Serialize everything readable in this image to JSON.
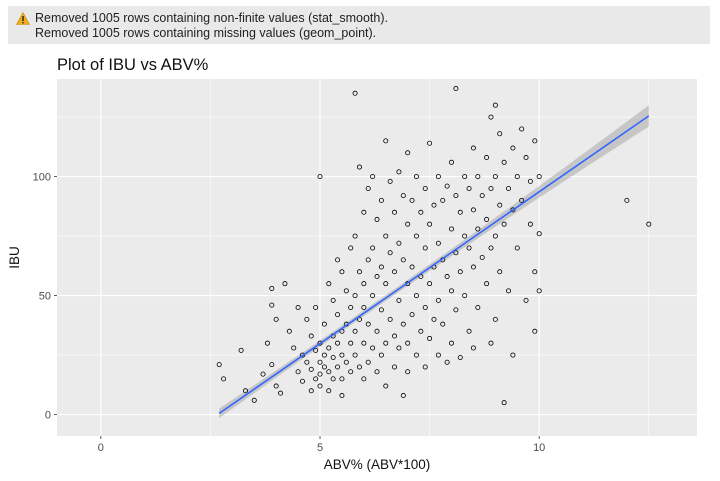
{
  "warnings": {
    "icon": "warning-triangle-icon",
    "icon_color": "#f0ad1c",
    "lines": [
      "Removed 1005 rows containing non-finite values (stat_smooth).",
      "Removed 1005 rows containing missing values (geom_point)."
    ]
  },
  "chart_data": {
    "type": "scatter",
    "title": "Plot of IBU vs ABV%",
    "xlabel": "ABV% (ABV*100)",
    "ylabel": "IBU",
    "xlim": [
      -1.0,
      13.6
    ],
    "ylim": [
      -9,
      141
    ],
    "x_ticks": [
      0,
      5,
      10
    ],
    "y_ticks": [
      0,
      50,
      100
    ],
    "x_tick_labels": [
      "0",
      "5",
      "10"
    ],
    "y_tick_labels": [
      "0",
      "50",
      "100"
    ],
    "grid": true,
    "panel_background": "#ebebeb",
    "grid_color": "#ffffff",
    "point_color": "#000000",
    "smooth": {
      "method": "linear",
      "color": "#3366ff",
      "ribbon_color": "#999999",
      "x": [
        2.7,
        12.5
      ],
      "y": [
        0.5,
        125.5
      ],
      "se_at_ends": 4.5,
      "se_at_center": 1.2,
      "x_center": 6.0
    },
    "points": [
      [
        2.7,
        21
      ],
      [
        2.8,
        15
      ],
      [
        3.2,
        27
      ],
      [
        3.3,
        10
      ],
      [
        3.5,
        6
      ],
      [
        3.9,
        53
      ],
      [
        3.9,
        46
      ],
      [
        4.2,
        55
      ],
      [
        4.0,
        40
      ],
      [
        3.8,
        30
      ],
      [
        3.9,
        21
      ],
      [
        3.7,
        17
      ],
      [
        4.0,
        12
      ],
      [
        4.1,
        9
      ],
      [
        4.3,
        35
      ],
      [
        4.4,
        28
      ],
      [
        4.5,
        45
      ],
      [
        4.5,
        18
      ],
      [
        4.6,
        25
      ],
      [
        4.6,
        14
      ],
      [
        4.7,
        40
      ],
      [
        4.7,
        22
      ],
      [
        4.8,
        33
      ],
      [
        4.8,
        19
      ],
      [
        4.8,
        10
      ],
      [
        4.9,
        27
      ],
      [
        4.9,
        15
      ],
      [
        4.9,
        45
      ],
      [
        5.0,
        100
      ],
      [
        5.0,
        30
      ],
      [
        5.0,
        22
      ],
      [
        5.0,
        17
      ],
      [
        5.0,
        12
      ],
      [
        5.1,
        38
      ],
      [
        5.1,
        25
      ],
      [
        5.1,
        20
      ],
      [
        5.2,
        55
      ],
      [
        5.2,
        28
      ],
      [
        5.2,
        18
      ],
      [
        5.2,
        10
      ],
      [
        5.3,
        48
      ],
      [
        5.3,
        33
      ],
      [
        5.3,
        24
      ],
      [
        5.3,
        15
      ],
      [
        5.4,
        65
      ],
      [
        5.4,
        42
      ],
      [
        5.4,
        30
      ],
      [
        5.4,
        20
      ],
      [
        5.5,
        60
      ],
      [
        5.5,
        35
      ],
      [
        5.5,
        25
      ],
      [
        5.5,
        15
      ],
      [
        5.5,
        8
      ],
      [
        5.6,
        52
      ],
      [
        5.6,
        38
      ],
      [
        5.6,
        22
      ],
      [
        5.7,
        70
      ],
      [
        5.7,
        45
      ],
      [
        5.7,
        30
      ],
      [
        5.7,
        18
      ],
      [
        5.8,
        135
      ],
      [
        5.8,
        75
      ],
      [
        5.8,
        50
      ],
      [
        5.8,
        35
      ],
      [
        5.8,
        25
      ],
      [
        5.9,
        104
      ],
      [
        5.9,
        60
      ],
      [
        5.9,
        40
      ],
      [
        5.9,
        20
      ],
      [
        6.0,
        85
      ],
      [
        6.0,
        55
      ],
      [
        6.0,
        45
      ],
      [
        6.0,
        30
      ],
      [
        6.0,
        15
      ],
      [
        6.1,
        95
      ],
      [
        6.1,
        65
      ],
      [
        6.1,
        38
      ],
      [
        6.1,
        22
      ],
      [
        6.2,
        100
      ],
      [
        6.2,
        70
      ],
      [
        6.2,
        50
      ],
      [
        6.2,
        28
      ],
      [
        6.3,
        82
      ],
      [
        6.3,
        58
      ],
      [
        6.3,
        35
      ],
      [
        6.3,
        18
      ],
      [
        6.4,
        90
      ],
      [
        6.4,
        62
      ],
      [
        6.4,
        44
      ],
      [
        6.4,
        25
      ],
      [
        6.5,
        115
      ],
      [
        6.5,
        75
      ],
      [
        6.5,
        55
      ],
      [
        6.5,
        30
      ],
      [
        6.5,
        12
      ],
      [
        6.6,
        98
      ],
      [
        6.6,
        68
      ],
      [
        6.6,
        40
      ],
      [
        6.7,
        85
      ],
      [
        6.7,
        60
      ],
      [
        6.7,
        33
      ],
      [
        6.7,
        20
      ],
      [
        6.8,
        102
      ],
      [
        6.8,
        72
      ],
      [
        6.8,
        48
      ],
      [
        6.8,
        28
      ],
      [
        6.9,
        92
      ],
      [
        6.9,
        65
      ],
      [
        6.9,
        38
      ],
      [
        6.9,
        8
      ],
      [
        7.0,
        110
      ],
      [
        7.0,
        80
      ],
      [
        7.0,
        55
      ],
      [
        7.0,
        30
      ],
      [
        7.0,
        18
      ],
      [
        7.1,
        90
      ],
      [
        7.1,
        62
      ],
      [
        7.1,
        42
      ],
      [
        7.2,
        100
      ],
      [
        7.2,
        75
      ],
      [
        7.2,
        50
      ],
      [
        7.2,
        25
      ],
      [
        7.3,
        85
      ],
      [
        7.3,
        58
      ],
      [
        7.3,
        35
      ],
      [
        7.4,
        95
      ],
      [
        7.4,
        70
      ],
      [
        7.4,
        45
      ],
      [
        7.4,
        20
      ],
      [
        7.5,
        114
      ],
      [
        7.5,
        80
      ],
      [
        7.5,
        55
      ],
      [
        7.5,
        32
      ],
      [
        7.6,
        88
      ],
      [
        7.6,
        62
      ],
      [
        7.6,
        40
      ],
      [
        7.7,
        100
      ],
      [
        7.7,
        72
      ],
      [
        7.7,
        48
      ],
      [
        7.7,
        25
      ],
      [
        7.8,
        90
      ],
      [
        7.8,
        65
      ],
      [
        7.8,
        38
      ],
      [
        7.9,
        96
      ],
      [
        7.9,
        58
      ],
      [
        7.9,
        22
      ],
      [
        8.0,
        106
      ],
      [
        8.0,
        78
      ],
      [
        8.0,
        52
      ],
      [
        8.0,
        30
      ],
      [
        8.1,
        137
      ],
      [
        8.1,
        92
      ],
      [
        8.1,
        68
      ],
      [
        8.1,
        44
      ],
      [
        8.2,
        85
      ],
      [
        8.2,
        60
      ],
      [
        8.2,
        24
      ],
      [
        8.3,
        100
      ],
      [
        8.3,
        75
      ],
      [
        8.3,
        50
      ],
      [
        8.4,
        95
      ],
      [
        8.4,
        70
      ],
      [
        8.4,
        35
      ],
      [
        8.5,
        112
      ],
      [
        8.5,
        86
      ],
      [
        8.5,
        62
      ],
      [
        8.5,
        28
      ],
      [
        8.6,
        100
      ],
      [
        8.6,
        78
      ],
      [
        8.6,
        45
      ],
      [
        8.7,
        92
      ],
      [
        8.7,
        66
      ],
      [
        8.8,
        108
      ],
      [
        8.8,
        82
      ],
      [
        8.8,
        55
      ],
      [
        8.9,
        125
      ],
      [
        8.9,
        95
      ],
      [
        8.9,
        70
      ],
      [
        8.9,
        30
      ],
      [
        9.0,
        130
      ],
      [
        9.0,
        100
      ],
      [
        9.0,
        75
      ],
      [
        9.0,
        40
      ],
      [
        9.1,
        118
      ],
      [
        9.1,
        88
      ],
      [
        9.1,
        60
      ],
      [
        9.2,
        106
      ],
      [
        9.2,
        80
      ],
      [
        9.2,
        5
      ],
      [
        9.3,
        95
      ],
      [
        9.3,
        52
      ],
      [
        9.4,
        112
      ],
      [
        9.4,
        86
      ],
      [
        9.4,
        25
      ],
      [
        9.5,
        100
      ],
      [
        9.5,
        70
      ],
      [
        9.6,
        120
      ],
      [
        9.6,
        90
      ],
      [
        9.7,
        108
      ],
      [
        9.7,
        48
      ],
      [
        9.8,
        98
      ],
      [
        9.8,
        80
      ],
      [
        9.9,
        115
      ],
      [
        9.9,
        60
      ],
      [
        9.9,
        35
      ],
      [
        10.0,
        100
      ],
      [
        10.0,
        76
      ],
      [
        10.0,
        52
      ],
      [
        12.0,
        90
      ],
      [
        12.5,
        80
      ]
    ]
  }
}
